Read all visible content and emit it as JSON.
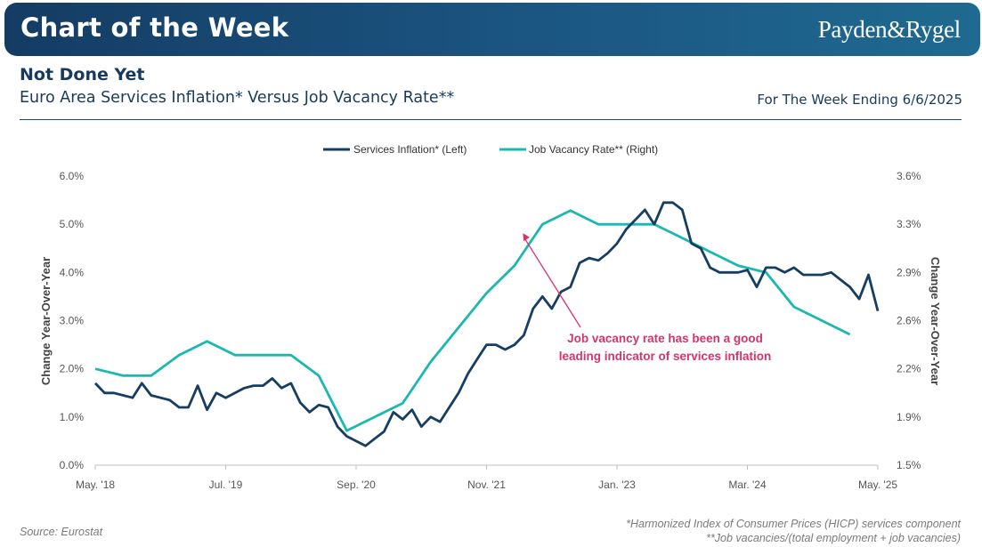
{
  "header": {
    "banner_title": "Chart of the Week",
    "brand": "Payden&Rygel",
    "headline": "Not Done Yet",
    "subtitle": "Euro Area Services Inflation* Versus Job Vacancy Rate**",
    "week_ending": "For The Week Ending 6/6/2025"
  },
  "footer": {
    "source": "Source: Eurostat",
    "note1": "*Harmonized Index of Consumer Prices (HICP) services component",
    "note2": "**Job vacancies/(total employment + job vacancies)"
  },
  "colors": {
    "services": "#163d62",
    "vacancy": "#1bb8b0",
    "annotation": "#d8336b",
    "axis_text": "#555555"
  },
  "chart_data": {
    "type": "line",
    "title": "",
    "x_ticks": [
      "May. '18",
      "Jul. '19",
      "Sep. '20",
      "Nov. '21",
      "Jan. '23",
      "Mar. '24",
      "May. '25"
    ],
    "y_left": {
      "label": "Change Year-Over-Year",
      "ticks": [
        "0.0%",
        "1.0%",
        "2.0%",
        "3.0%",
        "4.0%",
        "5.0%",
        "6.0%"
      ],
      "range": [
        0,
        6
      ]
    },
    "y_right": {
      "label": "Change Year-Over-Year",
      "ticks": [
        "1.5%",
        "1.9%",
        "2.2%",
        "2.6%",
        "2.9%",
        "3.3%",
        "3.6%"
      ],
      "range": [
        1.5,
        3.6
      ]
    },
    "legend": {
      "position": "top-center"
    },
    "grid": false,
    "annotation": {
      "line1": "Job vacancy rate has been a good",
      "line2": "leading indicator of services inflation",
      "arrow_target_month": 46,
      "arrow_target_value": 3.25
    },
    "series": [
      {
        "name": "Services Inflation* (Left)",
        "axis": "left",
        "comment": "monthly values; x = months since May 2018",
        "x": [
          0,
          1,
          2,
          3,
          4,
          5,
          6,
          7,
          8,
          9,
          10,
          11,
          12,
          13,
          14,
          15,
          16,
          17,
          18,
          19,
          20,
          21,
          22,
          23,
          24,
          25,
          26,
          27,
          28,
          29,
          30,
          31,
          32,
          33,
          34,
          35,
          36,
          37,
          38,
          39,
          40,
          41,
          42,
          43,
          44,
          45,
          46,
          47,
          48,
          49,
          50,
          51,
          52,
          53,
          54,
          55,
          56,
          57,
          58,
          59,
          60,
          61,
          62,
          63,
          64,
          65,
          66,
          67,
          68,
          69,
          70,
          71,
          72,
          73,
          74,
          75,
          76,
          77,
          78,
          79,
          80,
          81,
          82,
          83,
          84
        ],
        "values": [
          1.7,
          1.5,
          1.5,
          1.45,
          1.4,
          1.7,
          1.45,
          1.4,
          1.35,
          1.2,
          1.2,
          1.65,
          1.15,
          1.5,
          1.4,
          1.5,
          1.6,
          1.65,
          1.65,
          1.8,
          1.6,
          1.7,
          1.3,
          1.1,
          1.25,
          1.2,
          0.8,
          0.6,
          0.5,
          0.4,
          0.55,
          0.7,
          1.1,
          0.95,
          1.15,
          0.8,
          1.0,
          0.9,
          1.2,
          1.5,
          1.9,
          2.2,
          2.5,
          2.5,
          2.4,
          2.5,
          2.7,
          3.25,
          3.5,
          3.25,
          3.6,
          3.7,
          4.2,
          4.3,
          4.25,
          4.4,
          4.6,
          4.9,
          5.1,
          5.3,
          5.0,
          5.45,
          5.45,
          5.3,
          4.6,
          4.5,
          4.1,
          4.0,
          4.0,
          4.0,
          4.05,
          3.7,
          4.1,
          4.1,
          4.0,
          4.1,
          3.95,
          3.95,
          3.95,
          4.0,
          3.85,
          3.7,
          3.45,
          3.95,
          3.2
        ]
      },
      {
        "name": "Job Vacancy Rate** (Right)",
        "axis": "right",
        "comment": "quarterly values; x = months since May 2018",
        "x": [
          0,
          3,
          6,
          9,
          12,
          15,
          18,
          21,
          24,
          27,
          30,
          33,
          36,
          39,
          42,
          45,
          48,
          51,
          54,
          57,
          60,
          63,
          66,
          69,
          72,
          75,
          78,
          81
        ],
        "values": [
          2.2,
          2.15,
          2.15,
          2.3,
          2.4,
          2.3,
          2.3,
          2.3,
          2.15,
          1.75,
          1.85,
          1.95,
          2.25,
          2.5,
          2.75,
          2.95,
          3.25,
          3.35,
          3.25,
          3.25,
          3.25,
          3.15,
          3.05,
          2.95,
          2.9,
          2.65,
          2.55,
          2.45
        ]
      }
    ]
  }
}
